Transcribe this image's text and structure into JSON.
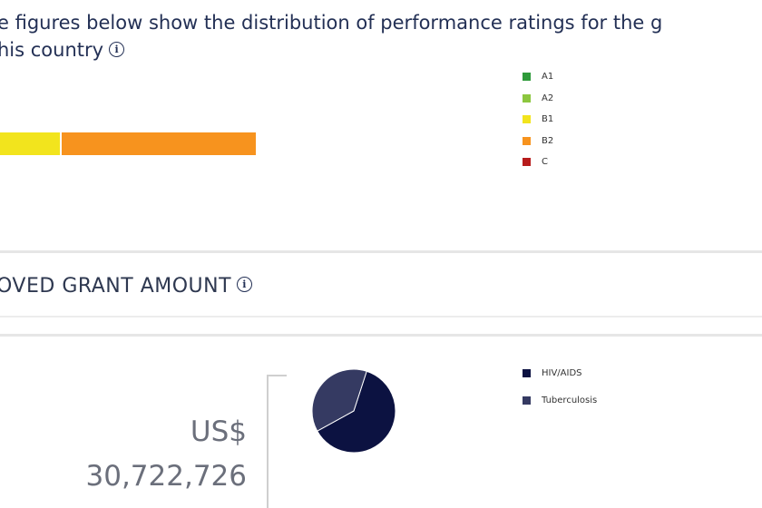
{
  "intro": {
    "line1": "e figures below show the distribution of performance ratings for the g",
    "line2": "his country",
    "info_icon": "info-icon"
  },
  "ratings": {
    "legend": [
      {
        "label": "A1",
        "color": "#2e9a3a"
      },
      {
        "label": "A2",
        "color": "#8cc63f"
      },
      {
        "label": "B1",
        "color": "#f2e41d"
      },
      {
        "label": "B2",
        "color": "#f7931e"
      },
      {
        "label": "C",
        "color": "#b71c1c"
      }
    ],
    "bar_segments": [
      {
        "rating": "B1",
        "color": "#f2e41d",
        "share": 0.237
      },
      {
        "rating": "B2",
        "color": "#f7931e",
        "share": 0.763
      }
    ]
  },
  "grant": {
    "title": "OVED GRANT AMOUNT",
    "info_icon": "info-icon",
    "currency": "US$",
    "amount": "30,722,726"
  },
  "chart_data": {
    "type": "pie",
    "categories": [
      "HIV/AIDS",
      "Tuberculosis"
    ],
    "values": [
      62,
      38
    ],
    "colors": [
      "#0c1241",
      "#353a62"
    ]
  }
}
